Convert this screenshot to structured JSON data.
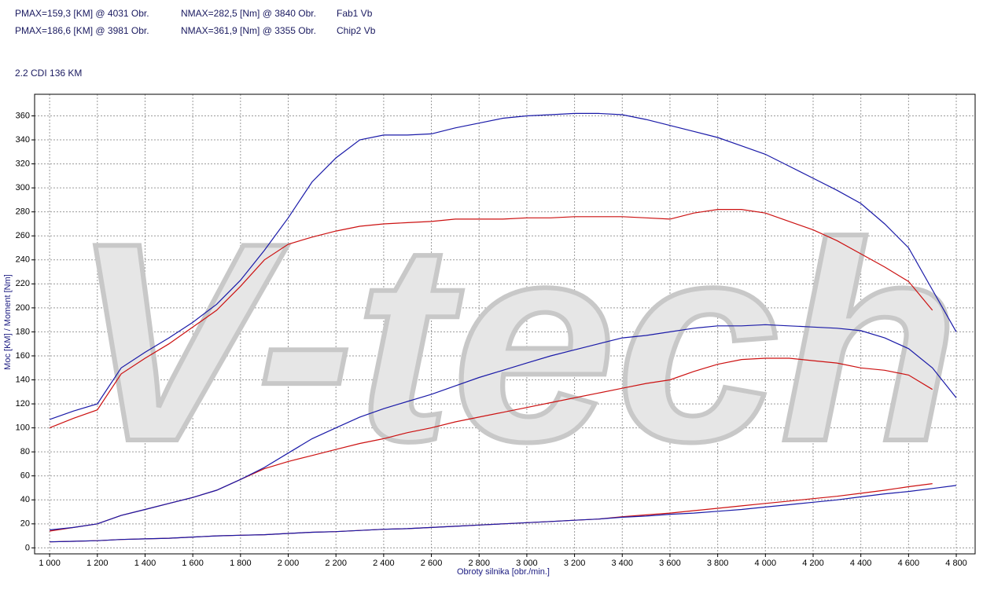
{
  "chart_data": {
    "type": "line",
    "legend": [
      {
        "pmax": "PMAX=159,3 [KM] @ 4031 Obr.",
        "nmax": "NMAX=282,5 [Nm] @ 3840 Obr.",
        "name": "Fab1 Vb"
      },
      {
        "pmax": "PMAX=186,6 [KM] @ 3981 Obr.",
        "nmax": "NMAX=361,9 [Nm] @ 3355 Obr.",
        "name": "Chip2 Vb"
      }
    ],
    "subtitle": "2.2 CDI 136 KM",
    "watermark": "V-tech",
    "x_label": "Obroty silnika [obr./min.]",
    "y_label": "Moc [KM] / Moment [Nm]",
    "grid": true,
    "x": [
      1000,
      1100,
      1200,
      1300,
      1400,
      1500,
      1600,
      1700,
      1800,
      1900,
      2000,
      2100,
      2200,
      2300,
      2400,
      2500,
      2600,
      2700,
      2800,
      2900,
      3000,
      3100,
      3200,
      3300,
      3400,
      3500,
      3600,
      3700,
      3800,
      3900,
      4000,
      4100,
      4200,
      4300,
      4400,
      4500,
      4600,
      4700,
      4800
    ],
    "series": [
      {
        "color": "#cc1111",
        "values": [
          100,
          108,
          115,
          145,
          158,
          170,
          184,
          198,
          218,
          240,
          253,
          259,
          264,
          268,
          270,
          271,
          272,
          274,
          274,
          274,
          275,
          275,
          276,
          276,
          276,
          275,
          274,
          279,
          282,
          282,
          279,
          272,
          265,
          256,
          245,
          234,
          222,
          198,
          null
        ]
      },
      {
        "color": "#1a1aa8",
        "values": [
          107,
          114,
          120,
          150,
          163,
          175,
          188,
          203,
          223,
          248,
          275,
          305,
          325,
          340,
          344,
          344,
          345,
          350,
          354,
          358,
          360,
          361,
          362,
          362,
          361,
          357,
          352,
          347,
          342,
          335,
          328,
          318,
          308,
          298,
          287,
          270,
          250,
          215,
          180
        ]
      },
      {
        "color": "#cc1111",
        "values": [
          14,
          17,
          20,
          27,
          32,
          37,
          42,
          48,
          57,
          66,
          72,
          77,
          82,
          87,
          91,
          96,
          100,
          105,
          109,
          113,
          117,
          121,
          125,
          129,
          133,
          137,
          140,
          147,
          153,
          157,
          158,
          158,
          156,
          154,
          150,
          148,
          144,
          132,
          null
        ]
      },
      {
        "color": "#1a1aa8",
        "values": [
          15,
          17,
          20,
          27,
          32,
          37,
          42,
          48,
          57,
          67,
          79,
          91,
          100,
          109,
          116,
          122,
          128,
          135,
          142,
          148,
          154,
          160,
          165,
          170,
          175,
          177,
          180,
          183,
          185,
          185,
          186,
          185,
          184,
          183,
          181,
          175,
          166,
          150,
          125
        ]
      },
      {
        "color": "#cc1111",
        "values": [
          5,
          5.5,
          6,
          7,
          7.5,
          8,
          9,
          10,
          10.5,
          11,
          12,
          13,
          13.5,
          14.5,
          15.5,
          16,
          17,
          18,
          19,
          20,
          21,
          22,
          23,
          24,
          26,
          27.5,
          29,
          31,
          33,
          35,
          37,
          39,
          41,
          43,
          45.5,
          48,
          51,
          53.5,
          null
        ]
      },
      {
        "color": "#1a1aa8",
        "values": [
          5,
          5.5,
          6,
          7,
          7.5,
          8,
          9,
          10,
          10.5,
          11,
          12,
          13,
          13.5,
          14.5,
          15.5,
          16,
          17,
          18,
          19,
          20,
          21,
          22,
          23,
          24,
          25.5,
          26.5,
          28,
          29,
          30.5,
          32,
          34,
          36,
          38,
          40,
          42.5,
          45,
          47,
          49.5,
          52
        ]
      }
    ],
    "xlim": [
      937,
      4879
    ],
    "ylim": [
      -5,
      378
    ],
    "xticks": [
      {
        "value": 1000,
        "label": "1 000"
      },
      {
        "value": 1200,
        "label": "1 200"
      },
      {
        "value": 1400,
        "label": "1 400"
      },
      {
        "value": 1600,
        "label": "1 600"
      },
      {
        "value": 1800,
        "label": "1 800"
      },
      {
        "value": 2000,
        "label": "2 000"
      },
      {
        "value": 2200,
        "label": "2 200"
      },
      {
        "value": 2400,
        "label": "2 400"
      },
      {
        "value": 2600,
        "label": "2 600"
      },
      {
        "value": 2800,
        "label": "2 800"
      },
      {
        "value": 3000,
        "label": "3 000"
      },
      {
        "value": 3200,
        "label": "3 200"
      },
      {
        "value": 3400,
        "label": "3 400"
      },
      {
        "value": 3600,
        "label": "3 600"
      },
      {
        "value": 3800,
        "label": "3 800"
      },
      {
        "value": 4000,
        "label": "4 000"
      },
      {
        "value": 4200,
        "label": "4 200"
      },
      {
        "value": 4400,
        "label": "4 400"
      },
      {
        "value": 4600,
        "label": "4 600"
      },
      {
        "value": 4800,
        "label": "4 800"
      }
    ],
    "yticks": [
      0,
      20,
      40,
      60,
      80,
      100,
      120,
      140,
      160,
      180,
      200,
      220,
      240,
      260,
      280,
      300,
      320,
      340,
      360
    ]
  }
}
